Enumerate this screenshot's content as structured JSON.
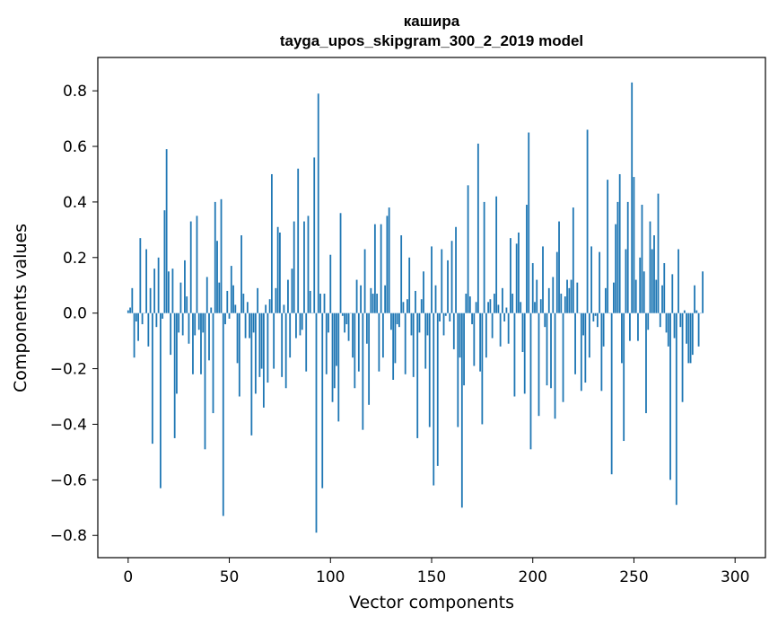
{
  "chart_data": {
    "type": "bar",
    "title": "кашира",
    "subtitle": "tayga_upos_skipgram_300_2_2019 model",
    "xlabel": "Vector components",
    "ylabel": "Components values",
    "xlim": [
      -15,
      315
    ],
    "ylim": [
      -0.88,
      0.92
    ],
    "xticks": [
      0,
      50,
      100,
      150,
      200,
      250,
      300
    ],
    "xtick_labels": [
      "0",
      "50",
      "100",
      "150",
      "200",
      "250",
      "300"
    ],
    "yticks": [
      -0.8,
      -0.6,
      -0.4,
      -0.2,
      0.0,
      0.2,
      0.4,
      0.6,
      0.8
    ],
    "ytick_labels": [
      "−0.8",
      "−0.6",
      "−0.4",
      "−0.2",
      "0.0",
      "0.2",
      "0.4",
      "0.6",
      "0.8"
    ],
    "bar_color": "#1f77b4",
    "grid": false,
    "values": [
      0.01,
      0.02,
      0.09,
      -0.16,
      -0.03,
      -0.1,
      0.27,
      -0.04,
      0.0,
      0.23,
      -0.12,
      0.09,
      -0.47,
      0.16,
      -0.05,
      0.2,
      -0.63,
      -0.02,
      0.37,
      0.59,
      0.15,
      -0.15,
      0.16,
      -0.45,
      -0.29,
      -0.07,
      0.11,
      -0.08,
      0.19,
      0.06,
      -0.11,
      0.33,
      -0.22,
      -0.08,
      0.35,
      -0.06,
      -0.22,
      -0.07,
      -0.49,
      0.13,
      -0.17,
      0.02,
      -0.36,
      0.4,
      0.26,
      0.11,
      0.41,
      -0.73,
      -0.04,
      0.08,
      -0.02,
      0.17,
      0.1,
      0.03,
      -0.18,
      -0.3,
      0.28,
      0.07,
      -0.09,
      0.04,
      -0.09,
      -0.44,
      -0.07,
      -0.29,
      0.09,
      -0.23,
      -0.2,
      -0.34,
      0.03,
      -0.25,
      0.05,
      0.5,
      -0.2,
      0.09,
      0.31,
      0.29,
      -0.23,
      0.03,
      -0.27,
      0.12,
      -0.16,
      0.16,
      0.33,
      -0.09,
      0.52,
      -0.08,
      -0.06,
      0.33,
      -0.21,
      0.35,
      0.08,
      0.0,
      0.56,
      -0.79,
      0.79,
      0.07,
      -0.63,
      0.07,
      -0.22,
      -0.07,
      0.21,
      -0.32,
      -0.27,
      -0.19,
      -0.39,
      0.36,
      -0.01,
      -0.07,
      -0.04,
      -0.1,
      0.0,
      -0.16,
      -0.27,
      0.12,
      -0.21,
      0.1,
      -0.42,
      0.23,
      -0.11,
      -0.33,
      0.09,
      0.07,
      0.32,
      0.07,
      -0.21,
      0.32,
      -0.16,
      0.1,
      0.35,
      0.38,
      -0.06,
      -0.24,
      -0.18,
      -0.04,
      -0.05,
      0.28,
      0.04,
      -0.22,
      0.05,
      0.2,
      -0.08,
      -0.23,
      0.08,
      -0.45,
      -0.07,
      0.05,
      0.15,
      -0.2,
      -0.08,
      -0.41,
      0.24,
      -0.62,
      0.1,
      -0.55,
      -0.03,
      0.23,
      -0.08,
      -0.01,
      0.19,
      -0.03,
      0.26,
      -0.13,
      0.31,
      -0.41,
      -0.16,
      -0.7,
      -0.26,
      0.07,
      0.46,
      0.06,
      -0.04,
      -0.19,
      0.04,
      0.61,
      -0.21,
      -0.4,
      0.4,
      -0.16,
      0.04,
      0.05,
      -0.09,
      0.07,
      0.42,
      0.03,
      -0.12,
      0.09,
      -0.03,
      0.02,
      -0.11,
      0.27,
      0.07,
      -0.3,
      0.25,
      0.29,
      0.04,
      -0.14,
      -0.29,
      0.39,
      0.65,
      -0.49,
      0.18,
      0.04,
      0.12,
      -0.37,
      0.05,
      0.24,
      -0.05,
      -0.26,
      0.09,
      -0.27,
      0.13,
      -0.38,
      0.22,
      0.33,
      0.07,
      -0.32,
      0.06,
      0.12,
      0.09,
      0.12,
      0.38,
      -0.22,
      0.11,
      0.0,
      -0.28,
      -0.08,
      -0.25,
      0.66,
      -0.16,
      0.24,
      -0.03,
      -0.01,
      -0.05,
      0.22,
      -0.28,
      -0.12,
      0.09,
      0.48,
      0.0,
      -0.58,
      0.11,
      0.32,
      0.4,
      0.5,
      -0.18,
      -0.46,
      0.23,
      0.4,
      -0.1,
      0.83,
      0.49,
      0.12,
      -0.1,
      0.2,
      0.39,
      0.15,
      -0.36,
      -0.06,
      0.33,
      0.23,
      0.28,
      0.12,
      0.43,
      -0.05,
      0.1,
      0.18,
      -0.07,
      -0.12,
      -0.6,
      0.14,
      -0.09,
      -0.69,
      0.23,
      -0.05,
      -0.32,
      0.01,
      -0.11,
      -0.18,
      -0.18,
      -0.15,
      0.1,
      0.01,
      -0.12,
      0.0,
      0.15
    ]
  }
}
